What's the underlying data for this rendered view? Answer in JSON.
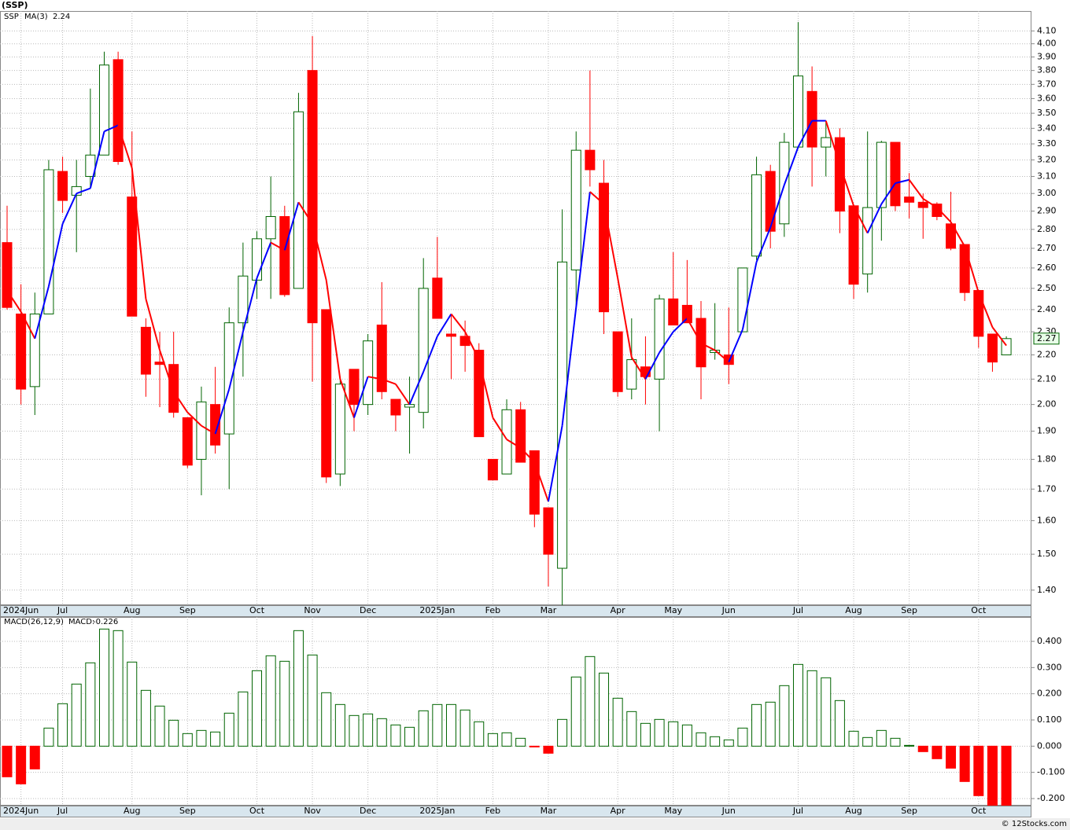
{
  "chart_data": [
    {
      "type": "candlestick",
      "title": "(SSP)",
      "log_scale": true,
      "grid": true,
      "categories": [
        null,
        "2024Jun",
        null,
        null,
        "Jul",
        null,
        null,
        null,
        null,
        "Aug",
        null,
        null,
        null,
        "Sep",
        null,
        null,
        null,
        null,
        "Oct",
        null,
        null,
        null,
        "Nov",
        null,
        null,
        null,
        "Dec",
        null,
        null,
        null,
        null,
        "2025Jan",
        null,
        null,
        null,
        "Feb",
        null,
        null,
        null,
        "Mar",
        null,
        null,
        null,
        null,
        "Apr",
        null,
        null,
        null,
        "May",
        null,
        null,
        null,
        "Jun",
        null,
        null,
        null,
        null,
        "Jul",
        null,
        null,
        null,
        "Aug",
        null,
        null,
        null,
        "Sep",
        null,
        null,
        null,
        null,
        "Oct",
        null,
        null
      ],
      "series": [
        {
          "name": "SSP",
          "up_color": "#006400",
          "down_color": "#ff0000",
          "open": [
            2.73,
            2.38,
            2.07,
            2.38,
            3.13,
            2.99,
            3.1,
            3.23,
            3.88,
            2.98,
            2.32,
            2.17,
            2.16,
            1.95,
            1.8,
            2.0,
            1.89,
            2.34,
            2.54,
            2.75,
            2.87,
            2.5,
            3.8,
            2.4,
            1.75,
            2.14,
            2.0,
            2.33,
            2.02,
            1.99,
            1.97,
            2.55,
            2.29,
            2.28,
            2.22,
            1.8,
            1.75,
            1.98,
            1.83,
            1.64,
            1.46,
            2.59,
            3.26,
            3.06,
            2.3,
            2.06,
            2.15,
            2.1,
            2.45,
            2.42,
            2.36,
            2.21,
            2.2,
            2.3,
            2.66,
            3.13,
            2.83,
            3.28,
            3.65,
            3.28,
            3.34,
            2.93,
            2.57,
            2.92,
            3.31,
            2.98,
            2.95,
            2.94,
            2.83,
            2.72,
            2.49,
            2.29,
            2.2
          ],
          "high": [
            2.93,
            2.52,
            2.48,
            3.2,
            3.22,
            3.2,
            3.67,
            3.94,
            3.94,
            3.38,
            2.36,
            2.3,
            2.3,
            1.95,
            2.07,
            2.15,
            2.41,
            2.73,
            2.79,
            3.1,
            2.93,
            3.64,
            4.06,
            2.4,
            2.11,
            2.14,
            2.29,
            2.53,
            2.02,
            2.11,
            2.65,
            2.76,
            2.38,
            2.35,
            2.25,
            1.8,
            2.02,
            2.01,
            1.83,
            1.64,
            2.91,
            3.38,
            3.8,
            3.2,
            2.3,
            2.36,
            2.28,
            2.47,
            2.68,
            2.64,
            2.44,
            2.43,
            2.41,
            2.6,
            3.22,
            3.17,
            3.37,
            4.17,
            3.83,
            3.45,
            3.4,
            2.93,
            3.38,
            3.32,
            3.31,
            3.12,
            3.0,
            2.95,
            3.01,
            2.72,
            2.49,
            2.29,
            2.28
          ],
          "low": [
            2.4,
            2.0,
            1.96,
            2.38,
            2.89,
            2.68,
            3.03,
            3.23,
            3.17,
            2.37,
            2.03,
            1.99,
            1.95,
            1.77,
            1.68,
            1.82,
            1.7,
            2.11,
            2.45,
            2.45,
            2.46,
            2.5,
            2.09,
            1.72,
            1.71,
            1.9,
            1.96,
            2.02,
            1.9,
            1.82,
            1.91,
            2.36,
            2.1,
            2.13,
            1.88,
            1.73,
            1.75,
            1.79,
            1.58,
            1.41,
            1.36,
            2.4,
            3.04,
            2.29,
            2.03,
            2.02,
            2.0,
            1.9,
            2.33,
            2.34,
            2.02,
            2.18,
            2.08,
            2.3,
            2.64,
            2.7,
            2.76,
            3.28,
            3.04,
            3.1,
            2.78,
            2.45,
            2.48,
            2.74,
            2.9,
            2.86,
            2.75,
            2.85,
            2.69,
            2.44,
            2.23,
            2.13,
            2.2
          ],
          "close": [
            2.41,
            2.06,
            2.38,
            3.14,
            2.96,
            3.04,
            3.23,
            3.84,
            3.19,
            2.37,
            2.12,
            2.16,
            1.97,
            1.78,
            2.01,
            1.85,
            2.34,
            2.56,
            2.75,
            2.87,
            2.47,
            3.51,
            2.34,
            1.74,
            2.08,
            2.0,
            2.26,
            2.05,
            1.96,
            2.0,
            2.5,
            2.36,
            2.28,
            2.24,
            1.88,
            1.73,
            1.98,
            1.79,
            1.62,
            1.5,
            2.63,
            3.26,
            3.14,
            2.39,
            2.05,
            2.18,
            2.11,
            2.45,
            2.33,
            2.34,
            2.15,
            2.22,
            2.16,
            2.6,
            3.11,
            2.79,
            3.31,
            3.76,
            3.28,
            3.34,
            2.9,
            2.52,
            2.92,
            3.31,
            2.93,
            2.95,
            2.92,
            2.87,
            2.7,
            2.48,
            2.28,
            2.17,
            2.27
          ]
        },
        {
          "name": "MA(3)",
          "type": "line",
          "up_color": "#0000ff",
          "down_color": "#ff0000",
          "values": [
            2.49,
            2.39,
            2.27,
            2.51,
            2.83,
            3.0,
            3.03,
            3.38,
            3.42,
            3.15,
            2.45,
            2.22,
            2.05,
            1.97,
            1.92,
            1.89,
            2.06,
            2.3,
            2.55,
            2.73,
            2.69,
            2.95,
            2.83,
            2.54,
            2.1,
            1.95,
            2.11,
            2.1,
            2.08,
            2.0,
            2.13,
            2.28,
            2.38,
            2.3,
            2.18,
            1.95,
            1.87,
            1.84,
            1.79,
            1.66,
            1.92,
            2.41,
            3.01,
            2.94,
            2.55,
            2.19,
            2.1,
            2.21,
            2.3,
            2.36,
            2.25,
            2.22,
            2.17,
            2.31,
            2.63,
            2.81,
            3.05,
            3.28,
            3.45,
            3.45,
            3.17,
            2.93,
            2.78,
            2.94,
            3.06,
            3.08,
            2.97,
            2.92,
            2.84,
            2.71,
            2.48,
            2.32,
            2.24
          ]
        }
      ],
      "ylim": [
        1.36,
        4.26
      ],
      "yticks": [
        {
          "value": 1.4,
          "label": "1.40"
        },
        {
          "value": 1.5,
          "label": "1.50"
        },
        {
          "value": 1.6,
          "label": "1.60"
        },
        {
          "value": 1.7,
          "label": "1.70"
        },
        {
          "value": 1.8,
          "label": "1.80"
        },
        {
          "value": 1.9,
          "label": "1.90"
        },
        {
          "value": 2.0,
          "label": "2.00"
        },
        {
          "value": 2.1,
          "label": "2.10"
        },
        {
          "value": 2.2,
          "label": "2.20"
        },
        {
          "value": 2.3,
          "label": "2.30"
        },
        {
          "value": 2.4,
          "label": "2.40"
        },
        {
          "value": 2.5,
          "label": "2.50"
        },
        {
          "value": 2.6,
          "label": "2.60"
        },
        {
          "value": 2.7,
          "label": "2.70"
        },
        {
          "value": 2.8,
          "label": "2.80"
        },
        {
          "value": 2.9,
          "label": "2.90"
        },
        {
          "value": 3.0,
          "label": "3.00"
        },
        {
          "value": 3.1,
          "label": "3.10"
        },
        {
          "value": 3.2,
          "label": "3.20"
        },
        {
          "value": 3.3,
          "label": "3.30"
        },
        {
          "value": 3.4,
          "label": "3.40"
        },
        {
          "value": 3.5,
          "label": "3.50"
        },
        {
          "value": 3.6,
          "label": "3.60"
        },
        {
          "value": 3.7,
          "label": "3.70"
        },
        {
          "value": 3.8,
          "label": "3.80"
        },
        {
          "value": 3.9,
          "label": "3.90"
        },
        {
          "value": 4.0,
          "label": "4.00"
        },
        {
          "value": 4.1,
          "label": "4.10"
        }
      ]
    },
    {
      "type": "bar",
      "title": "MACD(26,12,9)",
      "grid": true,
      "categories": [
        null,
        "2024Jun",
        null,
        null,
        "Jul",
        null,
        null,
        null,
        null,
        "Aug",
        null,
        null,
        null,
        "Sep",
        null,
        null,
        null,
        null,
        "Oct",
        null,
        null,
        null,
        "Nov",
        null,
        null,
        null,
        "Dec",
        null,
        null,
        null,
        null,
        "2025Jan",
        null,
        null,
        null,
        "Feb",
        null,
        null,
        null,
        "Mar",
        null,
        null,
        null,
        null,
        "Apr",
        null,
        null,
        null,
        "May",
        null,
        null,
        null,
        "Jun",
        null,
        null,
        null,
        null,
        "Jul",
        null,
        null,
        null,
        "Aug",
        null,
        null,
        null,
        "Sep",
        null,
        null,
        null,
        null,
        "Oct",
        null,
        null
      ],
      "series": [
        {
          "name": "MACD:",
          "up_color": "#006400",
          "down_color": "#ff0000",
          "values": [
            -0.117,
            -0.144,
            -0.087,
            0.069,
            0.162,
            0.237,
            0.318,
            0.447,
            0.441,
            0.321,
            0.213,
            0.153,
            0.099,
            0.048,
            0.06,
            0.054,
            0.126,
            0.207,
            0.288,
            0.345,
            0.324,
            0.441,
            0.348,
            0.204,
            0.159,
            0.117,
            0.123,
            0.105,
            0.081,
            0.072,
            0.135,
            0.159,
            0.159,
            0.138,
            0.093,
            0.048,
            0.051,
            0.03,
            -0.003,
            -0.027,
            0.102,
            0.264,
            0.342,
            0.279,
            0.183,
            0.132,
            0.087,
            0.102,
            0.093,
            0.081,
            0.051,
            0.036,
            0.024,
            0.069,
            0.159,
            0.168,
            0.231,
            0.312,
            0.288,
            0.261,
            0.174,
            0.057,
            0.033,
            0.06,
            0.03,
            0.003,
            -0.021,
            -0.048,
            -0.084,
            -0.135,
            -0.189,
            -0.23,
            -0.226
          ]
        }
      ],
      "ylim": [
        -0.227,
        0.493
      ],
      "yticks": [
        {
          "value": -0.2,
          "label": "-0.200"
        },
        {
          "value": -0.1,
          "label": "-0.100"
        },
        {
          "value": 0,
          "label": "0.000"
        },
        {
          "value": 0.1,
          "label": "0.100"
        },
        {
          "value": 0.2,
          "label": "0.200"
        },
        {
          "value": 0.3,
          "label": "0.300"
        },
        {
          "value": 0.4,
          "label": "0.400"
        }
      ]
    }
  ],
  "footer": "© 12Stocks.com"
}
